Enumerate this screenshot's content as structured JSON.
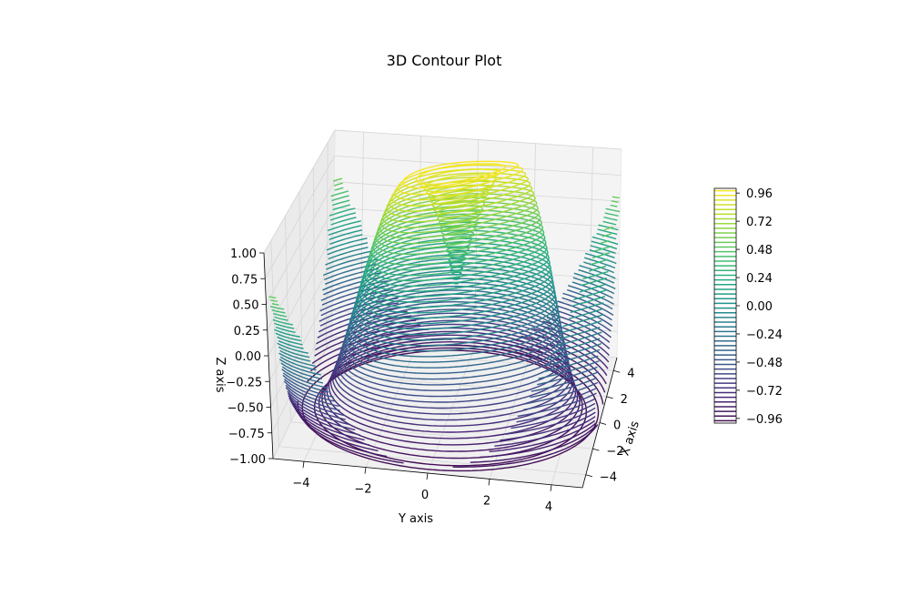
{
  "chart_data": {
    "type": "contour3d",
    "title": "3D Contour Plot",
    "xlabel": "X axis",
    "ylabel": "Y axis",
    "zlabel": "Z axis",
    "function": "z = sin(sqrt(x^2 + y^2))",
    "xlim": [
      -5,
      5
    ],
    "ylim": [
      -5,
      5
    ],
    "zlim": [
      -1,
      1
    ],
    "x_ticks": [
      "−4",
      "−2",
      "0",
      "2",
      "4"
    ],
    "y_ticks": [
      "−4",
      "−2",
      "0",
      "2",
      "4"
    ],
    "z_ticks": [
      "−1.00",
      "−0.75",
      "−0.50",
      "−0.25",
      "0.00",
      "0.25",
      "0.50",
      "0.75",
      "1.00"
    ],
    "contour_levels": 50,
    "colormap": "viridis",
    "colorbar": {
      "ticks": [
        "0.96",
        "0.72",
        "0.48",
        "0.24",
        "0.00",
        "−0.24",
        "−0.48",
        "−0.72",
        "−0.96"
      ],
      "tick_values": [
        0.96,
        0.72,
        0.48,
        0.24,
        0.0,
        -0.24,
        -0.48,
        -0.72,
        -0.96
      ],
      "range": [
        -1,
        1
      ]
    },
    "grid": true
  }
}
